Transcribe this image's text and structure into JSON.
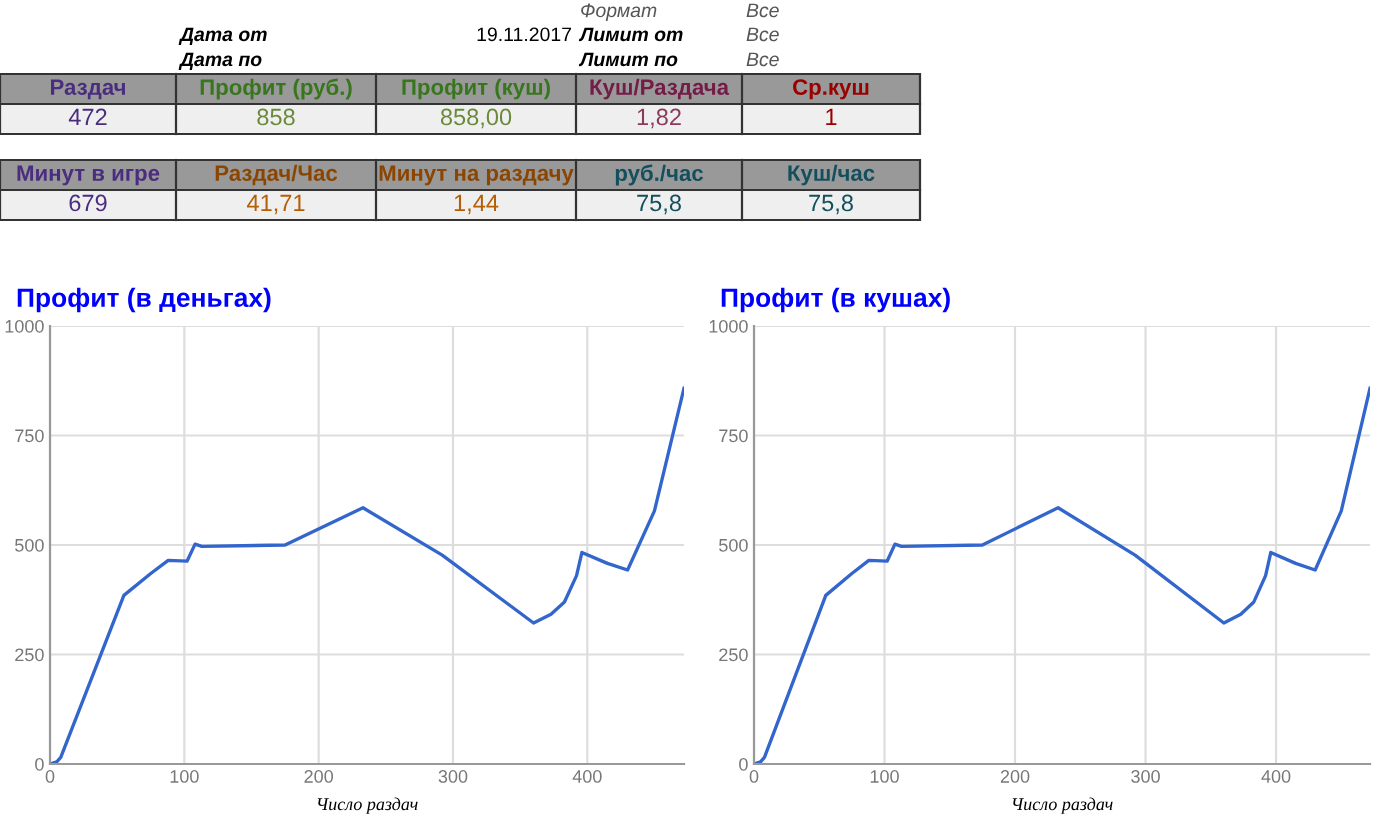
{
  "chart_data": [
    {
      "type": "other",
      "annotations": [
        "Формат",
        "Все",
        "Дата от",
        "19.11.2017",
        "Лимит от",
        "Все",
        "Дата по",
        "Лимит по",
        "Все",
        "Раздач",
        "Профит (руб.)",
        "Профит (куш)",
        "Куш/Раздача",
        "Ср.куш",
        "472",
        "858",
        "858,00",
        "1,82",
        "1",
        "Минут в игре",
        "Раздач/Час",
        "Минут на раздачу",
        "руб./час",
        "Куш/час",
        "679",
        "41,71",
        "1,44",
        "75,8",
        "75,8"
      ]
    },
    {
      "type": "line",
      "title": "Профит (в деньгах)",
      "xlabel": "Число раздач",
      "color": "#3366cc",
      "x": [
        0,
        5,
        8,
        55,
        75,
        88,
        102,
        108,
        113,
        175,
        233,
        292,
        360,
        373,
        383,
        392,
        396,
        415,
        430,
        450,
        472
      ],
      "values": [
        0,
        5,
        15,
        385,
        435,
        465,
        463,
        502,
        497,
        500,
        585,
        477,
        322,
        342,
        370,
        430,
        483,
        458,
        443,
        578,
        858
      ],
      "xlim": [
        0,
        472
      ],
      "ylim": [
        0,
        1000
      ],
      "xticks": [
        0,
        100,
        200,
        300,
        400
      ],
      "yticks": [
        0,
        250,
        500,
        750,
        1000
      ],
      "grid": true
    },
    {
      "type": "line",
      "title": "Профит (в кушах)",
      "xlabel": "Число раздач",
      "color": "#3366cc",
      "x": [
        0,
        5,
        8,
        55,
        75,
        88,
        102,
        108,
        113,
        175,
        233,
        292,
        360,
        373,
        383,
        392,
        396,
        415,
        430,
        450,
        472
      ],
      "values": [
        0,
        5,
        15,
        385,
        435,
        465,
        463,
        502,
        497,
        500,
        585,
        477,
        322,
        342,
        370,
        430,
        483,
        458,
        443,
        578,
        858
      ],
      "xlim": [
        0,
        472
      ],
      "ylim": [
        0,
        1000
      ],
      "xticks": [
        0,
        100,
        200,
        300,
        400
      ],
      "yticks": [
        0,
        250,
        500,
        750,
        1000
      ],
      "grid": true
    }
  ]
}
